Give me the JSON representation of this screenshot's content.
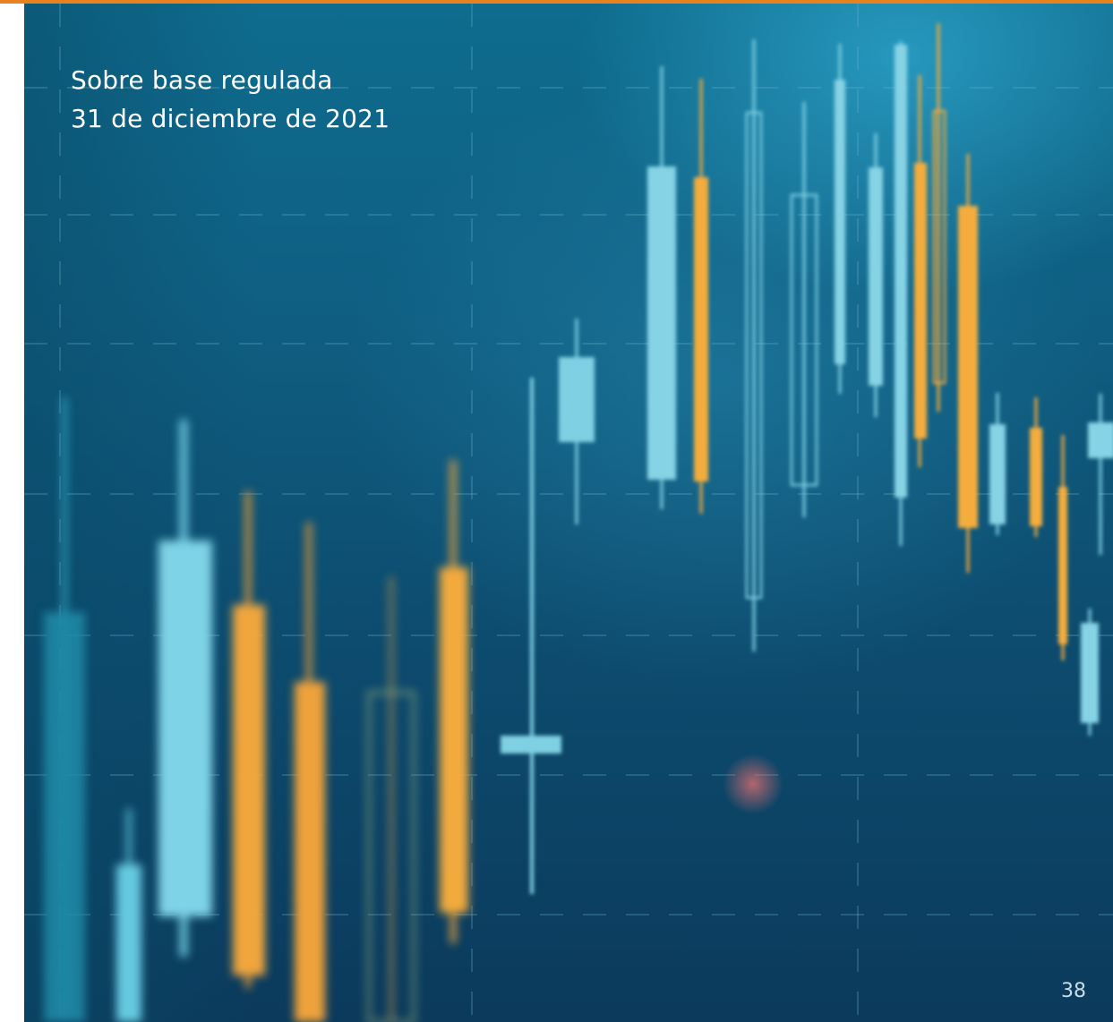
{
  "cover": {
    "title_line1": "Sobre base regulada",
    "title_line2": "31 de diciembre de 2021",
    "page_number": "38",
    "image": "candlestick-chart-background"
  },
  "colors": {
    "accent_bar": "#e8821e",
    "candle_light": "#7fcfe0",
    "candle_orange": "#f2a93b",
    "background_top": "#0e6c8e",
    "background_bottom": "#0b3a5c"
  }
}
